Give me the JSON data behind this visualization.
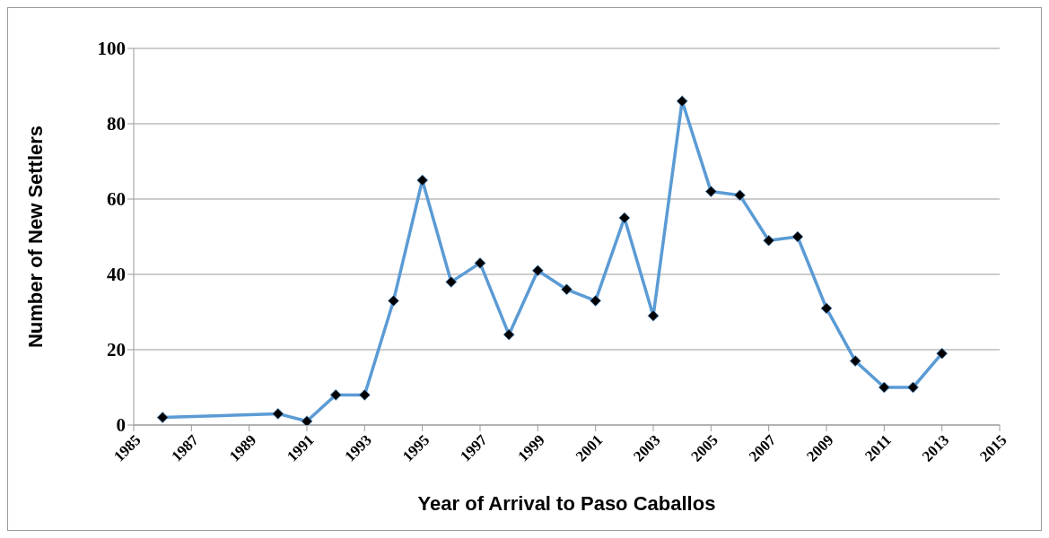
{
  "chart_data": {
    "type": "line",
    "xlabel": "Year of Arrival to Paso Caballos",
    "ylabel": "Number of New Settlers",
    "x": [
      1986,
      1990,
      1991,
      1992,
      1993,
      1994,
      1995,
      1996,
      1997,
      1998,
      1999,
      2000,
      2001,
      2002,
      2003,
      2004,
      2005,
      2006,
      2007,
      2008,
      2009,
      2010,
      2011,
      2012,
      2013
    ],
    "series": [
      {
        "color": "#5b9bd5",
        "values": [
          2,
          3,
          1,
          8,
          8,
          33,
          65,
          38,
          43,
          24,
          41,
          36,
          33,
          55,
          29,
          86,
          62,
          61,
          49,
          50,
          31,
          17,
          10,
          10,
          19
        ]
      }
    ],
    "xlim": [
      1985,
      2015
    ],
    "xticks": [
      1985,
      1987,
      1989,
      1991,
      1993,
      1995,
      1997,
      1999,
      2001,
      2003,
      2005,
      2007,
      2009,
      2011,
      2013,
      2015
    ],
    "ylim": [
      0,
      100
    ],
    "yticks": [
      0,
      20,
      40,
      60,
      80,
      100
    ],
    "grid": "y",
    "marker": "diamond",
    "line_style": "solid"
  }
}
